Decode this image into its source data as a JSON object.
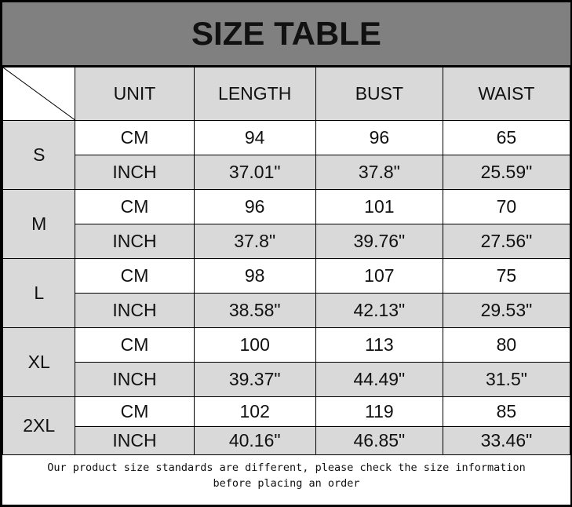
{
  "title": "SIZE TABLE",
  "headers": [
    "UNIT",
    "LENGTH",
    "BUST",
    "WAIST"
  ],
  "sizes": [
    {
      "size": "S",
      "rows": [
        [
          "CM",
          "94",
          "96",
          "65"
        ],
        [
          "INCH",
          "37.01\"",
          "37.8\"",
          "25.59\""
        ]
      ]
    },
    {
      "size": "M",
      "rows": [
        [
          "CM",
          "96",
          "101",
          "70"
        ],
        [
          "INCH",
          "37.8\"",
          "39.76\"",
          "27.56\""
        ]
      ]
    },
    {
      "size": "L",
      "rows": [
        [
          "CM",
          "98",
          "107",
          "75"
        ],
        [
          "INCH",
          "38.58\"",
          "42.13\"",
          "29.53\""
        ]
      ]
    },
    {
      "size": "XL",
      "rows": [
        [
          "CM",
          "100",
          "113",
          "80"
        ],
        [
          "INCH",
          "39.37\"",
          "44.49\"",
          "31.5\""
        ]
      ]
    },
    {
      "size": "2XL",
      "rows": [
        [
          "CM",
          "102",
          "119",
          "85"
        ],
        [
          "INCH",
          "40.16\"",
          "46.85\"",
          "33.46\""
        ]
      ]
    }
  ],
  "footer": {
    "line1": "Our product size standards are different, please check the size information",
    "line2": "before placing an order"
  },
  "colors": {
    "title_bg": "#808080",
    "cell_gray": "#d9d9d9",
    "cell_white": "#ffffff"
  }
}
